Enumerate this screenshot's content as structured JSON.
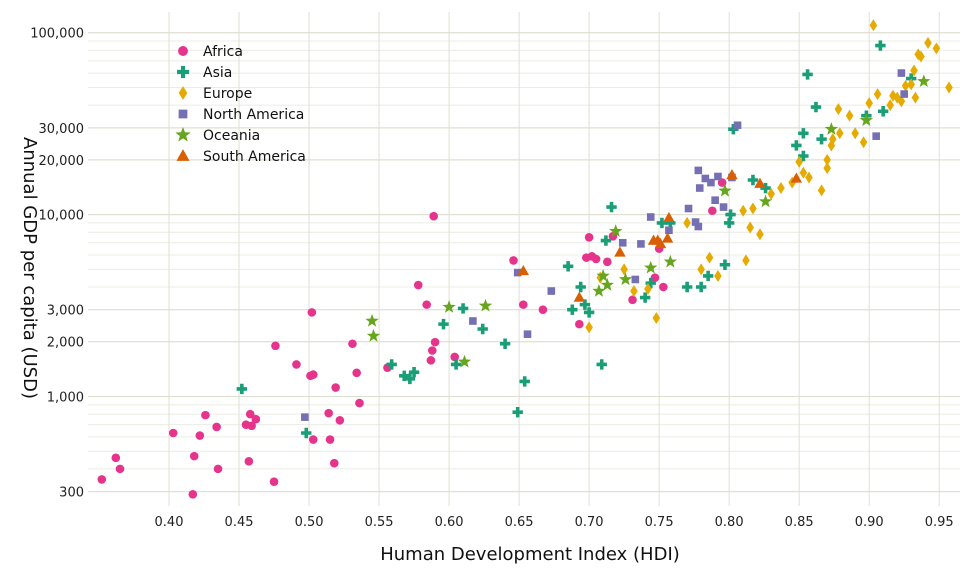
{
  "chart_data": {
    "type": "scatter",
    "title": "",
    "xlabel": "Human Development Index (HDI)",
    "ylabel": "Annual GDP per capita (USD)",
    "xlim": [
      0.345,
      0.962
    ],
    "ylim": [
      250,
      130000
    ],
    "yscale": "log",
    "x_ticks": [
      0.4,
      0.45,
      0.5,
      0.55,
      0.6,
      0.65,
      0.7,
      0.75,
      0.8,
      0.85,
      0.9,
      0.95
    ],
    "x_tick_labels": [
      "0.40",
      "0.45",
      "0.50",
      "0.55",
      "0.60",
      "0.65",
      "0.70",
      "0.75",
      "0.80",
      "0.85",
      "0.90",
      "0.95"
    ],
    "y_ticks": [
      300,
      1000,
      2000,
      3000,
      10000,
      20000,
      30000,
      100000
    ],
    "y_tick_labels": [
      "300",
      "1,000",
      "2,000",
      "3,000",
      "10,000",
      "20,000",
      "30,000",
      "100,000"
    ],
    "grid": true,
    "legend_position": "top-left",
    "series": [
      {
        "name": "Africa",
        "marker": "circle",
        "color": "#e6348c",
        "points": [
          [
            0.352,
            350
          ],
          [
            0.362,
            460
          ],
          [
            0.365,
            400
          ],
          [
            0.403,
            630
          ],
          [
            0.417,
            290
          ],
          [
            0.418,
            470
          ],
          [
            0.422,
            610
          ],
          [
            0.426,
            790
          ],
          [
            0.434,
            680
          ],
          [
            0.435,
            400
          ],
          [
            0.455,
            700
          ],
          [
            0.457,
            440
          ],
          [
            0.458,
            800
          ],
          [
            0.459,
            690
          ],
          [
            0.462,
            750
          ],
          [
            0.475,
            340
          ],
          [
            0.476,
            1900
          ],
          [
            0.491,
            1500
          ],
          [
            0.501,
            1300
          ],
          [
            0.502,
            2900
          ],
          [
            0.503,
            1320
          ],
          [
            0.503,
            580
          ],
          [
            0.514,
            810
          ],
          [
            0.515,
            580
          ],
          [
            0.518,
            430
          ],
          [
            0.519,
            1120
          ],
          [
            0.522,
            740
          ],
          [
            0.531,
            1950
          ],
          [
            0.534,
            1350
          ],
          [
            0.536,
            920
          ],
          [
            0.556,
            1440
          ],
          [
            0.578,
            4100
          ],
          [
            0.584,
            3200
          ],
          [
            0.587,
            1580
          ],
          [
            0.588,
            1790
          ],
          [
            0.59,
            1990
          ],
          [
            0.589,
            9800
          ],
          [
            0.604,
            1650
          ],
          [
            0.646,
            5600
          ],
          [
            0.653,
            3200
          ],
          [
            0.667,
            3000
          ],
          [
            0.693,
            2500
          ],
          [
            0.698,
            5800
          ],
          [
            0.7,
            7500
          ],
          [
            0.702,
            5900
          ],
          [
            0.705,
            5700
          ],
          [
            0.713,
            5500
          ],
          [
            0.717,
            7600
          ],
          [
            0.731,
            3400
          ],
          [
            0.747,
            4500
          ],
          [
            0.75,
            6500
          ],
          [
            0.753,
            4000
          ],
          [
            0.788,
            10500
          ],
          [
            0.795,
            15000
          ]
        ]
      },
      {
        "name": "Asia",
        "marker": "plus",
        "color": "#1a9e77",
        "points": [
          [
            0.452,
            1100
          ],
          [
            0.498,
            630
          ],
          [
            0.559,
            1500
          ],
          [
            0.568,
            1300
          ],
          [
            0.572,
            1250
          ],
          [
            0.575,
            1360
          ],
          [
            0.596,
            2500
          ],
          [
            0.605,
            1500
          ],
          [
            0.61,
            3050
          ],
          [
            0.624,
            2350
          ],
          [
            0.64,
            1950
          ],
          [
            0.649,
            820
          ],
          [
            0.654,
            1210
          ],
          [
            0.685,
            5200
          ],
          [
            0.688,
            3000
          ],
          [
            0.694,
            4000
          ],
          [
            0.697,
            3200
          ],
          [
            0.7,
            2900
          ],
          [
            0.709,
            1500
          ],
          [
            0.712,
            7200
          ],
          [
            0.716,
            11000
          ],
          [
            0.74,
            3500
          ],
          [
            0.744,
            4200
          ],
          [
            0.752,
            9000
          ],
          [
            0.758,
            9000
          ],
          [
            0.77,
            4000
          ],
          [
            0.78,
            4000
          ],
          [
            0.785,
            4600
          ],
          [
            0.797,
            5300
          ],
          [
            0.8,
            9000
          ],
          [
            0.801,
            10000
          ],
          [
            0.803,
            29500
          ],
          [
            0.817,
            15500
          ],
          [
            0.826,
            14000
          ],
          [
            0.848,
            24000
          ],
          [
            0.853,
            28000
          ],
          [
            0.853,
            21000
          ],
          [
            0.856,
            59000
          ],
          [
            0.862,
            39000
          ],
          [
            0.866,
            26000
          ],
          [
            0.898,
            35000
          ],
          [
            0.908,
            85000
          ],
          [
            0.91,
            37000
          ],
          [
            0.93,
            56000
          ]
        ]
      },
      {
        "name": "Europe",
        "marker": "diamond",
        "color": "#e6ab02",
        "points": [
          [
            0.7,
            2400
          ],
          [
            0.708,
            4500
          ],
          [
            0.725,
            5000
          ],
          [
            0.732,
            3800
          ],
          [
            0.742,
            3900
          ],
          [
            0.748,
            2700
          ],
          [
            0.77,
            9000
          ],
          [
            0.78,
            5000
          ],
          [
            0.786,
            5800
          ],
          [
            0.792,
            4600
          ],
          [
            0.81,
            10500
          ],
          [
            0.812,
            5600
          ],
          [
            0.815,
            8500
          ],
          [
            0.817,
            10800
          ],
          [
            0.822,
            7800
          ],
          [
            0.83,
            13000
          ],
          [
            0.837,
            14000
          ],
          [
            0.845,
            15000
          ],
          [
            0.85,
            19500
          ],
          [
            0.853,
            17000
          ],
          [
            0.857,
            16000
          ],
          [
            0.866,
            13600
          ],
          [
            0.87,
            18000
          ],
          [
            0.87,
            20000
          ],
          [
            0.873,
            24000
          ],
          [
            0.874,
            26000
          ],
          [
            0.878,
            38000
          ],
          [
            0.879,
            28000
          ],
          [
            0.886,
            35000
          ],
          [
            0.89,
            28000
          ],
          [
            0.896,
            25000
          ],
          [
            0.9,
            41000
          ],
          [
            0.903,
            110000
          ],
          [
            0.906,
            46000
          ],
          [
            0.915,
            40000
          ],
          [
            0.917,
            45000
          ],
          [
            0.92,
            44000
          ],
          [
            0.923,
            42000
          ],
          [
            0.926,
            51000
          ],
          [
            0.93,
            52000
          ],
          [
            0.932,
            62000
          ],
          [
            0.933,
            44000
          ],
          [
            0.935,
            76000
          ],
          [
            0.937,
            74000
          ],
          [
            0.942,
            88000
          ],
          [
            0.948,
            82000
          ],
          [
            0.957,
            50000
          ]
        ]
      },
      {
        "name": "North America",
        "marker": "square",
        "color": "#7570b3",
        "points": [
          [
            0.497,
            770
          ],
          [
            0.617,
            2600
          ],
          [
            0.649,
            4800
          ],
          [
            0.656,
            2200
          ],
          [
            0.673,
            3800
          ],
          [
            0.724,
            7000
          ],
          [
            0.733,
            4400
          ],
          [
            0.737,
            6900
          ],
          [
            0.744,
            9700
          ],
          [
            0.757,
            8200
          ],
          [
            0.771,
            10800
          ],
          [
            0.776,
            9100
          ],
          [
            0.778,
            8600
          ],
          [
            0.778,
            17500
          ],
          [
            0.779,
            14000
          ],
          [
            0.783,
            15800
          ],
          [
            0.787,
            15000
          ],
          [
            0.79,
            12000
          ],
          [
            0.792,
            16200
          ],
          [
            0.796,
            11000
          ],
          [
            0.802,
            16000
          ],
          [
            0.806,
            31000
          ],
          [
            0.905,
            27000
          ],
          [
            0.923,
            60000
          ],
          [
            0.925,
            46000
          ]
        ]
      },
      {
        "name": "Oceania",
        "marker": "star",
        "color": "#66a61e",
        "points": [
          [
            0.545,
            2600
          ],
          [
            0.546,
            2150
          ],
          [
            0.6,
            3100
          ],
          [
            0.611,
            1550
          ],
          [
            0.626,
            3150
          ],
          [
            0.707,
            3800
          ],
          [
            0.71,
            4600
          ],
          [
            0.713,
            4100
          ],
          [
            0.719,
            8100
          ],
          [
            0.726,
            4400
          ],
          [
            0.744,
            5100
          ],
          [
            0.758,
            5500
          ],
          [
            0.797,
            13500
          ],
          [
            0.826,
            11800
          ],
          [
            0.873,
            29500
          ],
          [
            0.898,
            33000
          ],
          [
            0.939,
            54000
          ]
        ]
      },
      {
        "name": "South America",
        "marker": "triangle",
        "color": "#d95f02",
        "points": [
          [
            0.653,
            4900
          ],
          [
            0.693,
            3500
          ],
          [
            0.722,
            6200
          ],
          [
            0.746,
            7200
          ],
          [
            0.749,
            7200
          ],
          [
            0.751,
            6900
          ],
          [
            0.756,
            7400
          ],
          [
            0.757,
            9600
          ],
          [
            0.802,
            16500
          ],
          [
            0.822,
            14800
          ],
          [
            0.848,
            15800
          ]
        ]
      }
    ]
  }
}
